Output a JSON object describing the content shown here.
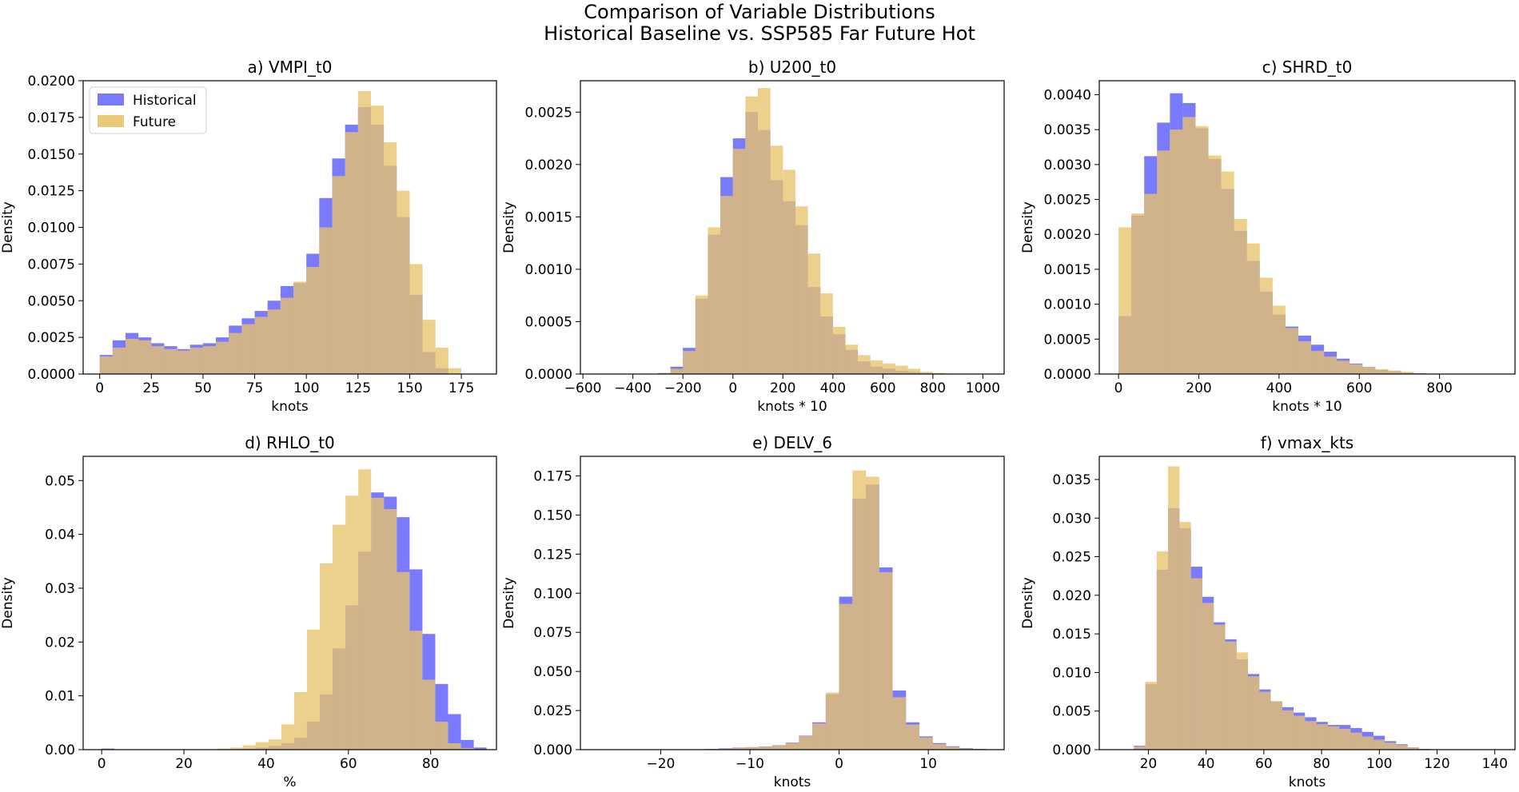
{
  "figure": {
    "suptitle_line1": "Comparison of Variable Distributions",
    "suptitle_line2": "Historical Baseline vs. SSP585 Far Future Hot"
  },
  "colors": {
    "historical": "#6b6bff",
    "future": "#e8c36a",
    "overlap_note": "overlap rendered by alpha blending"
  },
  "legend": {
    "historical": "Historical",
    "future": "Future",
    "location": "upper-left of panel a"
  },
  "chart_data": [
    {
      "type": "bar",
      "title": "a) VMPI_t0",
      "xlabel": "knots",
      "ylabel": "Density",
      "xlim": [
        -8,
        192
      ],
      "ylim": [
        0,
        0.02
      ],
      "xticks": [
        0,
        25,
        50,
        75,
        100,
        125,
        150,
        175
      ],
      "xtick_labels": [
        "0",
        "25",
        "50",
        "75",
        "100",
        "125",
        "150",
        "175"
      ],
      "yticks": [
        0,
        0.0025,
        0.005,
        0.0075,
        0.01,
        0.0125,
        0.015,
        0.0175,
        0.02
      ],
      "ytick_labels": [
        "0.0000",
        "0.0025",
        "0.0050",
        "0.0075",
        "0.0100",
        "0.0125",
        "0.0150",
        "0.0175",
        "0.0200"
      ],
      "bin_start": 0,
      "bin_width": 6.25,
      "series": [
        {
          "name": "Historical",
          "values": [
            0.0013,
            0.0023,
            0.0028,
            0.0025,
            0.0021,
            0.0019,
            0.0017,
            0.002,
            0.0021,
            0.0025,
            0.0033,
            0.0038,
            0.0043,
            0.005,
            0.006,
            0.0062,
            0.0082,
            0.012,
            0.0147,
            0.017,
            0.0182,
            0.017,
            0.0142,
            0.0107,
            0.0054,
            0.0015,
            0.0004,
            0
          ]
        },
        {
          "name": "Future",
          "values": [
            0.0012,
            0.0018,
            0.0024,
            0.0023,
            0.0019,
            0.0017,
            0.0016,
            0.0018,
            0.0019,
            0.0022,
            0.0028,
            0.0034,
            0.0039,
            0.0044,
            0.0052,
            0.0063,
            0.0073,
            0.01,
            0.0135,
            0.0165,
            0.0193,
            0.0183,
            0.0158,
            0.0125,
            0.0075,
            0.0037,
            0.0018,
            0.0004
          ]
        }
      ]
    },
    {
      "type": "bar",
      "title": "b) U200_t0",
      "xlabel": "knots * 10",
      "ylabel": "Density",
      "xlim": [
        -610,
        1085
      ],
      "ylim": [
        0,
        0.0028
      ],
      "xticks": [
        -600,
        -400,
        -200,
        0,
        200,
        400,
        600,
        800,
        1000
      ],
      "xtick_labels": [
        "−600",
        "−400",
        "−200",
        "0",
        "200",
        "400",
        "600",
        "800",
        "1000"
      ],
      "yticks": [
        0,
        0.0005,
        0.001,
        0.0015,
        0.002,
        0.0025
      ],
      "ytick_labels": [
        "0.0000",
        "0.0005",
        "0.0010",
        "0.0015",
        "0.0020",
        "0.0025"
      ],
      "bin_start": -300,
      "bin_width": 50,
      "series": [
        {
          "name": "Historical",
          "values": [
            1e-05,
            7e-05,
            0.00025,
            0.00072,
            0.00133,
            0.00188,
            0.00225,
            0.0025,
            0.00233,
            0.00185,
            0.00165,
            0.00142,
            0.00083,
            0.00055,
            0.00038,
            0.00023,
            0.00012,
            7e-05,
            5e-05,
            3e-05,
            2e-05,
            1e-05,
            5e-06,
            3e-06,
            0,
            0
          ]
        },
        {
          "name": "Future",
          "values": [
            1e-05,
            5e-05,
            0.00022,
            0.00075,
            0.0014,
            0.0017,
            0.00215,
            0.00265,
            0.00273,
            0.00218,
            0.00195,
            0.0016,
            0.00115,
            0.00077,
            0.00045,
            0.00028,
            0.00018,
            0.00013,
            0.0001,
            8e-05,
            5e-05,
            2e-05,
            1e-05,
            5e-06,
            0,
            0
          ]
        }
      ]
    },
    {
      "type": "bar",
      "title": "c) SHRD_t0",
      "xlabel": "knots * 10",
      "ylabel": "Density",
      "xlim": [
        -48,
        988
      ],
      "ylim": [
        0,
        0.0042
      ],
      "xticks": [
        0,
        200,
        400,
        600,
        800
      ],
      "xtick_labels": [
        "0",
        "200",
        "400",
        "600",
        "800"
      ],
      "yticks": [
        0,
        0.0005,
        0.001,
        0.0015,
        0.002,
        0.0025,
        0.003,
        0.0035,
        0.004
      ],
      "ytick_labels": [
        "0.0000",
        "0.0005",
        "0.0010",
        "0.0015",
        "0.0020",
        "0.0025",
        "0.0030",
        "0.0035",
        "0.0040"
      ],
      "bin_start": 0,
      "bin_width": 32,
      "series": [
        {
          "name": "Historical",
          "values": [
            0.00083,
            0.00227,
            0.00312,
            0.0036,
            0.00402,
            0.00388,
            0.00352,
            0.00308,
            0.00265,
            0.00205,
            0.00162,
            0.00118,
            0.00085,
            0.00068,
            0.00055,
            0.00042,
            0.00032,
            0.00022,
            0.00015,
            0.0001,
            6e-05,
            4e-05,
            2e-05,
            1e-05,
            0
          ]
        },
        {
          "name": "Future",
          "values": [
            0.0021,
            0.0023,
            0.00258,
            0.0032,
            0.0035,
            0.00368,
            0.00355,
            0.00313,
            0.0029,
            0.00222,
            0.00187,
            0.00138,
            0.00098,
            0.00066,
            0.00047,
            0.00033,
            0.00025,
            0.00019,
            0.00014,
            0.0001,
            7e-05,
            5e-05,
            3e-05,
            1e-05,
            0
          ]
        }
      ]
    },
    {
      "type": "bar",
      "title": "d) RHLO_t0",
      "xlabel": "%",
      "ylabel": "Density",
      "xlim": [
        -4.5,
        96
      ],
      "ylim": [
        0,
        0.0545
      ],
      "xticks": [
        0,
        20,
        40,
        60,
        80
      ],
      "xtick_labels": [
        "0",
        "20",
        "40",
        "60",
        "80"
      ],
      "yticks": [
        0,
        0.01,
        0.02,
        0.03,
        0.04,
        0.05
      ],
      "ytick_labels": [
        "0.00",
        "0.01",
        "0.02",
        "0.03",
        "0.04",
        "0.05"
      ],
      "bin_start": 0,
      "bin_width": 3.12,
      "series": [
        {
          "name": "Historical",
          "values": [
            0.0002,
            0,
            0,
            0,
            0,
            0,
            0,
            0,
            0,
            0,
            0.0001,
            0.0002,
            0.0004,
            0.0007,
            0.0012,
            0.0022,
            0.0052,
            0.0103,
            0.0188,
            0.0268,
            0.0368,
            0.0478,
            0.047,
            0.0432,
            0.0335,
            0.0215,
            0.0122,
            0.0066,
            0.0018,
            0.0004
          ]
        },
        {
          "name": "Future",
          "values": [
            0.0001,
            0,
            0,
            0,
            0,
            0,
            0,
            0,
            0.0001,
            0.0002,
            0.0004,
            0.0008,
            0.0014,
            0.0019,
            0.0047,
            0.0107,
            0.0223,
            0.0346,
            0.0418,
            0.0472,
            0.0521,
            0.0468,
            0.0447,
            0.033,
            0.0221,
            0.013,
            0.0052,
            0.0012,
            0.0003,
            0.0001
          ]
        }
      ]
    },
    {
      "type": "bar",
      "title": "e) DELV_6",
      "xlabel": "knots",
      "ylabel": "Density",
      "xlim": [
        -29,
        18.5
      ],
      "ylim": [
        0,
        0.1875
      ],
      "xticks": [
        -20,
        -10,
        0,
        10
      ],
      "xtick_labels": [
        "−20",
        "−10",
        "0",
        "10"
      ],
      "yticks": [
        0,
        0.025,
        0.05,
        0.075,
        0.1,
        0.125,
        0.15,
        0.175
      ],
      "ytick_labels": [
        "0.000",
        "0.025",
        "0.050",
        "0.075",
        "0.100",
        "0.125",
        "0.150",
        "0.175"
      ],
      "bin_start": -27,
      "bin_width": 1.5,
      "series": [
        {
          "name": "Historical",
          "values": [
            0,
            0,
            0,
            0,
            0,
            0,
            0,
            0.0002,
            0.0004,
            0.0008,
            0.0013,
            0.0016,
            0.002,
            0.0028,
            0.0045,
            0.009,
            0.0175,
            0.0355,
            0.0978,
            0.1605,
            0.1695,
            0.1165,
            0.0378,
            0.0175,
            0.0085,
            0.0042,
            0.0022,
            0.001,
            0.0005,
            0.0002,
            0.0001,
            0
          ]
        },
        {
          "name": "Future",
          "values": [
            0,
            0,
            0,
            0,
            0,
            0,
            0,
            0.0001,
            0.0003,
            0.0005,
            0.0011,
            0.0015,
            0.0019,
            0.0026,
            0.0042,
            0.0088,
            0.0168,
            0.0365,
            0.0932,
            0.1785,
            0.1745,
            0.1135,
            0.0335,
            0.016,
            0.0078,
            0.0036,
            0.0018,
            0.0008,
            0.0004,
            0.0001,
            0,
            0
          ]
        }
      ]
    },
    {
      "type": "bar",
      "title": "f) vmax_kts",
      "xlabel": "knots",
      "ylabel": "Density",
      "xlim": [
        3,
        147
      ],
      "ylim": [
        0,
        0.038
      ],
      "xticks": [
        20,
        40,
        60,
        80,
        100,
        120,
        140
      ],
      "xtick_labels": [
        "20",
        "40",
        "60",
        "80",
        "100",
        "120",
        "140"
      ],
      "yticks": [
        0,
        0.005,
        0.01,
        0.015,
        0.02,
        0.025,
        0.03,
        0.035
      ],
      "ytick_labels": [
        "0.000",
        "0.005",
        "0.010",
        "0.015",
        "0.020",
        "0.025",
        "0.030",
        "0.035"
      ],
      "bin_start": 15,
      "bin_width": 3.95,
      "series": [
        {
          "name": "Historical",
          "values": [
            0.0005,
            0.0085,
            0.0233,
            0.0313,
            0.0287,
            0.0237,
            0.0198,
            0.0165,
            0.0143,
            0.0117,
            0.0098,
            0.0078,
            0.0062,
            0.0055,
            0.0048,
            0.0042,
            0.0036,
            0.0032,
            0.0032,
            0.0028,
            0.0023,
            0.0018,
            0.0011,
            0.0007,
            0.0003,
            0.0001
          ]
        },
        {
          "name": "Future",
          "values": [
            0.0004,
            0.0088,
            0.0257,
            0.0367,
            0.0295,
            0.0222,
            0.019,
            0.0162,
            0.014,
            0.0126,
            0.0095,
            0.0075,
            0.0063,
            0.0051,
            0.0044,
            0.0037,
            0.0033,
            0.003,
            0.0027,
            0.0022,
            0.0017,
            0.0013,
            0.0009,
            0.0006,
            0.0003,
            0.0001
          ]
        }
      ]
    }
  ]
}
